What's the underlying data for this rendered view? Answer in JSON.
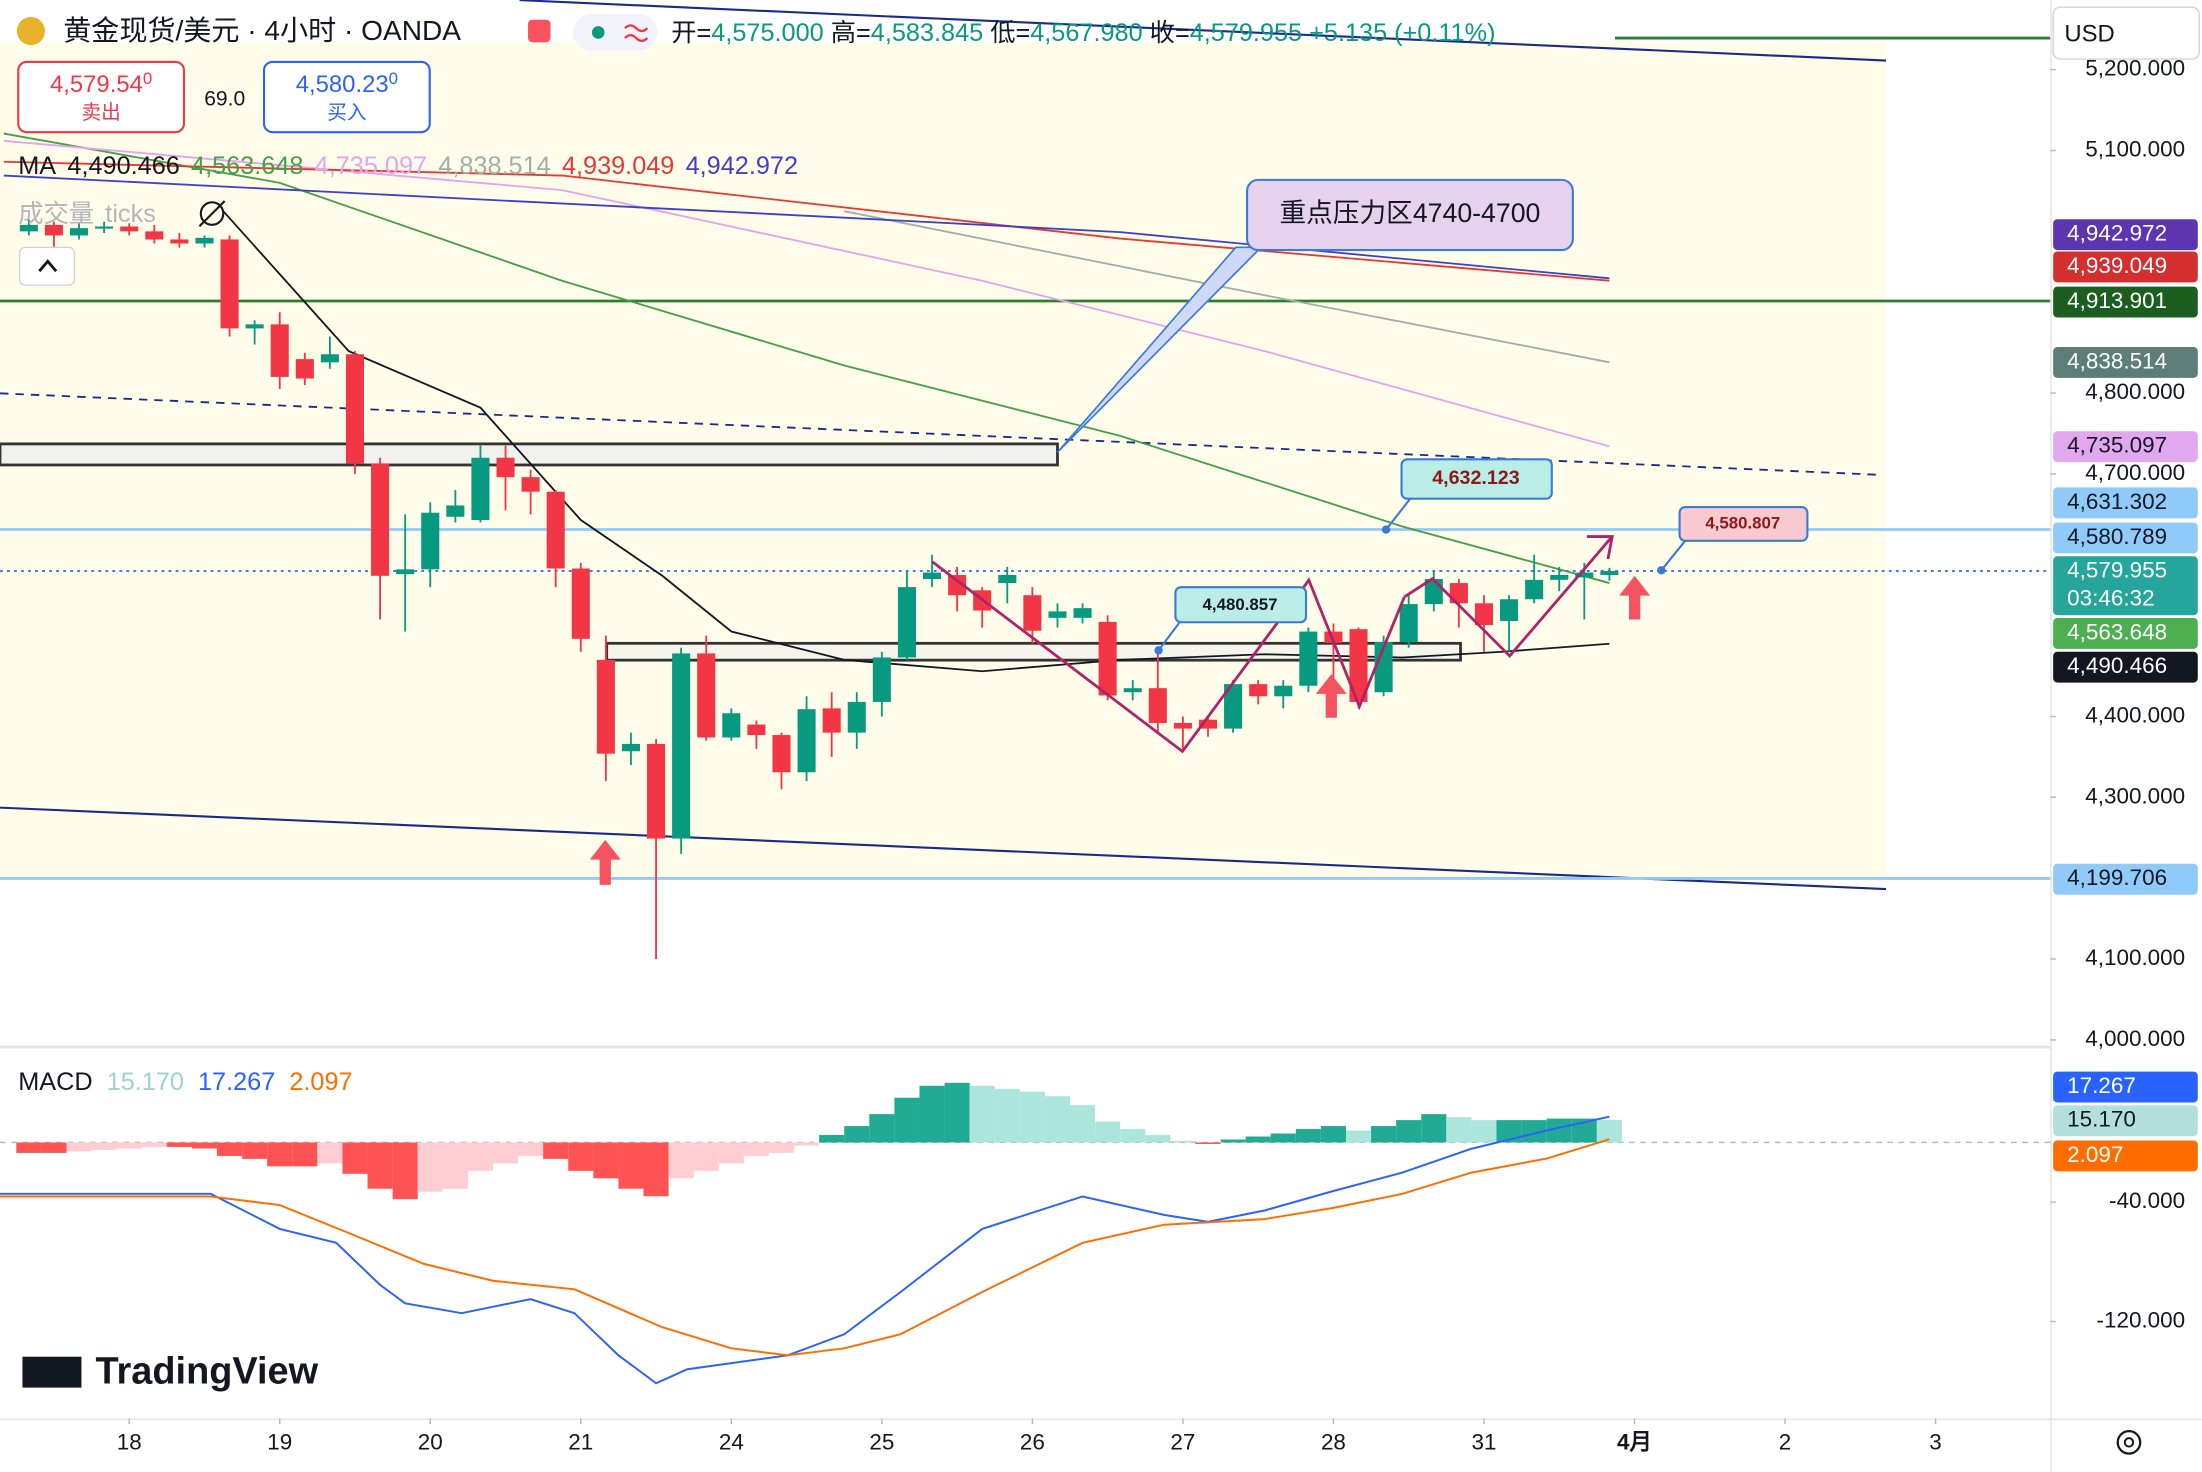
{
  "header": {
    "symbol": "黄金现货/美元 · 4小时 · OANDA",
    "open_key": "开=",
    "open": "4,575.000",
    "high_key": "高=",
    "high": "4,583.845",
    "low_key": "低=",
    "low": "4,567.980",
    "close_key": "收=",
    "close": "4,579.955",
    "change": "+5.135 (+0.11%)",
    "sell_price": "4,579.54",
    "sell_price_last_digit": "0",
    "sell": "卖出",
    "spread": "69.0",
    "buy_price": "4,580.23",
    "buy_price_last_digit": "0",
    "buy": "买入",
    "currency": "USD",
    "ma_title": "MA",
    "volume_title": "成交量",
    "volume_unit": "ticks",
    "countdown": "03:46:32",
    "logo": "TradingView"
  },
  "chart_data": [
    {
      "type": "candlestick",
      "up_color": "#089981",
      "down_color": "#f23645",
      "x": [
        -16,
        -12,
        -8,
        -4,
        0,
        4,
        8,
        12,
        16,
        20,
        24,
        28,
        32,
        36,
        40,
        44,
        48,
        52,
        56,
        60,
        64,
        68,
        72,
        76,
        80,
        84,
        88,
        92,
        96,
        100,
        104,
        108,
        112,
        116,
        120,
        124,
        128,
        132,
        136,
        140,
        144,
        148,
        152,
        156,
        160,
        164,
        168,
        172,
        176,
        180,
        184,
        188,
        192,
        196,
        200,
        204,
        208,
        212,
        216,
        220,
        224,
        228,
        232,
        236
      ],
      "open": [
        5000,
        5008,
        4995,
        5004,
        5006,
        5000,
        4990,
        4985,
        4990,
        4880,
        4885,
        4842,
        4838,
        4848,
        4713,
        4576,
        4582,
        4647,
        4643,
        4720,
        4696,
        4678,
        4583,
        4470,
        4357,
        4366,
        4249,
        4478,
        4374,
        4390,
        4377,
        4331,
        4410,
        4380,
        4418,
        4473,
        4570,
        4575,
        4556,
        4565,
        4550,
        4522,
        4522,
        4517,
        4430,
        4435,
        4392,
        4396,
        4385,
        4440,
        4425,
        4438,
        4505,
        4508,
        4430,
        4492,
        4539,
        4565,
        4540,
        4518,
        4545,
        4569,
        4572,
        4575
      ],
      "high": [
        5015,
        5012,
        5010,
        5012,
        5010,
        5008,
        4998,
        4995,
        4995,
        4890,
        4900,
        4850,
        4870,
        4852,
        4720,
        4650,
        4665,
        4680,
        4735,
        4735,
        4705,
        4680,
        4590,
        4500,
        4380,
        4372,
        4485,
        4500,
        4410,
        4395,
        4380,
        4425,
        4430,
        4430,
        4480,
        4580,
        4600,
        4585,
        4560,
        4585,
        4560,
        4540,
        4540,
        4525,
        4445,
        4480,
        4400,
        4400,
        4445,
        4445,
        4445,
        4510,
        4515,
        4510,
        4500,
        4550,
        4580,
        4570,
        4550,
        4550,
        4600,
        4585,
        4590,
        4583.845
      ],
      "low": [
        4995,
        4973,
        4990,
        4998,
        4995,
        4985,
        4980,
        4980,
        4870,
        4860,
        4805,
        4810,
        4830,
        4700,
        4520,
        4505,
        4560,
        4640,
        4640,
        4655,
        4650,
        4560,
        4480,
        4320,
        4340,
        4100,
        4230,
        4370,
        4370,
        4360,
        4310,
        4320,
        4350,
        4360,
        4400,
        4470,
        4560,
        4530,
        4510,
        4540,
        4490,
        4510,
        4515,
        4420,
        4420,
        4380,
        4360,
        4375,
        4380,
        4415,
        4410,
        4430,
        4430,
        4410,
        4425,
        4485,
        4530,
        4510,
        4480,
        4480,
        4540,
        4555,
        4520,
        4567.98
      ],
      "close": [
        5008,
        4995,
        5004,
        5006,
        5000,
        4990,
        4985,
        4992,
        4880,
        4885,
        4820,
        4818,
        4848,
        4713,
        4574,
        4582,
        4652,
        4661,
        4720,
        4696,
        4678,
        4583,
        4496,
        4354,
        4366,
        4249,
        4478,
        4374,
        4404,
        4377,
        4331,
        4409,
        4380,
        4418,
        4473,
        4560,
        4578,
        4550,
        4531,
        4575,
        4506,
        4530,
        4534,
        4426,
        4435,
        4392,
        4385,
        4385,
        4440,
        4425,
        4438,
        4505,
        4491,
        4418,
        4492,
        4539,
        4570,
        4540,
        4513,
        4545,
        4569,
        4575,
        4578,
        4579.955
      ],
      "xlim": [
        -20.6,
        306.3
      ],
      "ylim": [
        3992,
        5286
      ],
      "xticks": [
        {
          "value": 0,
          "label": "18"
        },
        {
          "value": 24,
          "label": "19"
        },
        {
          "value": 48,
          "label": "20"
        },
        {
          "value": 72,
          "label": "21"
        },
        {
          "value": 96,
          "label": "24"
        },
        {
          "value": 120,
          "label": "25"
        },
        {
          "value": 144,
          "label": "26"
        },
        {
          "value": 168,
          "label": "27"
        },
        {
          "value": 192,
          "label": "28"
        },
        {
          "value": 216,
          "label": "31"
        },
        {
          "value": 240,
          "label": "4月"
        },
        {
          "value": 264,
          "label": "2"
        },
        {
          "value": 288,
          "label": "3"
        }
      ],
      "yticks": [
        {
          "value": 5200,
          "label": "5,200.000"
        },
        {
          "value": 5100,
          "label": "5,100.000"
        },
        {
          "value": 4800,
          "label": "4,800.000"
        },
        {
          "value": 4700,
          "label": "4,700.000"
        },
        {
          "value": 4400,
          "label": "4,400.000"
        },
        {
          "value": 4300,
          "label": "4,300.000"
        },
        {
          "value": 4100,
          "label": "4,100.000"
        },
        {
          "value": 4000,
          "label": "4,000.000"
        }
      ],
      "overlays": [
        {
          "label": "4,490.466",
          "color": "#131722",
          "x": [
            15,
            35,
            56,
            72,
            85,
            96,
            114,
            136,
            158,
            181,
            203,
            219,
            236
          ],
          "values": [
            5025,
            4852,
            4782,
            4643,
            4574,
            4505,
            4470,
            4456,
            4470,
            4477,
            4473,
            4480,
            4490
          ]
        },
        {
          "label": "4,563.648",
          "color": "#43a047",
          "x": [
            -20,
            24,
            69,
            114,
            158,
            203,
            236
          ],
          "values": [
            5121,
            5060,
            4939,
            4834,
            4747,
            4635,
            4565
          ]
        },
        {
          "label": "4,735.097",
          "color": "#e2a4ee",
          "x": [
            -20,
            69,
            136,
            181,
            236
          ],
          "values": [
            5112,
            5051,
            4939,
            4852,
            4734
          ]
        },
        {
          "label": "4,838.514",
          "color": "#9fb0aa",
          "x": [
            114,
            181,
            236
          ],
          "values": [
            5025,
            4921,
            4838
          ]
        },
        {
          "label": "4,939.049",
          "color": "#e53935",
          "x": [
            -20,
            69,
            158,
            236
          ],
          "values": [
            5086,
            5069,
            4991,
            4939
          ]
        },
        {
          "label": "4,942.972",
          "color": "#3f3fc9",
          "x": [
            -20,
            114,
            158,
            236
          ],
          "values": [
            5069,
            5017,
            4999,
            4942
          ]
        }
      ],
      "price_labels": [
        {
          "value": 4942.972,
          "label": "4,942.972",
          "color": "#5e35b1",
          "text_color": "#ffffff"
        },
        {
          "value": 4939.049,
          "label": "4,939.049",
          "color": "#d32f2f",
          "text_color": "#ffffff"
        },
        {
          "value": 4913.901,
          "label": "4,913.901",
          "color": "#1b5e20",
          "text_color": "#ffffff",
          "line": "solid",
          "line_color": "#2e7d32"
        },
        {
          "value": 4838.514,
          "label": "4,838.514",
          "color": "#5d7d78",
          "text_color": "#ffffff"
        },
        {
          "value": 4735.097,
          "label": "4,735.097",
          "color": "#e1a8f0",
          "text_color": "#131722"
        },
        {
          "value": 4631.302,
          "label": "4,631.302",
          "color": "#90caf9",
          "text_color": "#131722",
          "line": "solid",
          "line_color": "#90caf9"
        },
        {
          "value": 4580.789,
          "label": "4,580.789",
          "color": "#90caf9",
          "text_color": "#131722"
        },
        {
          "value": 4579.955,
          "label": "4,579.955",
          "color": "#26a69a",
          "text_color": "#ffffff",
          "line": "dotted",
          "line_color": "#2962ff"
        },
        {
          "value": 4563.648,
          "label": "4,563.648",
          "color": "#4caf50",
          "text_color": "#ffffff"
        },
        {
          "value": 4490.466,
          "label": "4,490.466",
          "color": "#131722",
          "text_color": "#ffffff"
        },
        {
          "value": 4199.706,
          "label": "4,199.706",
          "color": "#90caf9",
          "text_color": "#131722",
          "line": "solid",
          "line_color": "#90caf9"
        }
      ],
      "annotations": [
        "重点压力区4740-4700",
        "4,632.123",
        "4,480.857",
        "4,580.807"
      ]
    },
    {
      "type": "macd",
      "title": "MACD",
      "xlim": [
        -20.6,
        306.3
      ],
      "ylim": [
        -185,
        61.6
      ],
      "yticks": [
        {
          "value": -40,
          "label": "-40.000"
        },
        {
          "value": -120,
          "label": "-120.000"
        }
      ],
      "hist_colors": [
        "#22ab94",
        "#ace5dc",
        "#ff5252",
        "#ffcdd2"
      ],
      "x": [
        -16,
        -12,
        -8,
        -4,
        0,
        4,
        8,
        12,
        16,
        20,
        24,
        28,
        32,
        36,
        40,
        44,
        48,
        52,
        56,
        60,
        64,
        68,
        72,
        76,
        80,
        84,
        88,
        92,
        96,
        100,
        104,
        108,
        112,
        116,
        120,
        124,
        128,
        132,
        136,
        140,
        144,
        148,
        152,
        156,
        160,
        164,
        168,
        172,
        176,
        180,
        184,
        188,
        192,
        196,
        200,
        204,
        208,
        212,
        216,
        220,
        224,
        228,
        232,
        236
      ],
      "histogram": [
        -7,
        -7,
        -6,
        -5,
        -4,
        -3,
        -3,
        -4,
        -9,
        -11,
        -16,
        -16,
        -14,
        -21,
        -31,
        -38,
        -33,
        -31,
        -19,
        -14,
        -9,
        -11,
        -19,
        -24,
        -31,
        -36,
        -24,
        -19,
        -14,
        -9,
        -7,
        -2,
        5,
        11,
        19,
        30,
        38,
        40,
        38,
        36,
        34,
        31,
        25,
        14,
        9,
        5,
        1,
        -1,
        2,
        4,
        6,
        9,
        11,
        8,
        11,
        15,
        19,
        17,
        15,
        15,
        15,
        16,
        16,
        15.17
      ],
      "series": [
        {
          "color": "#2962ff",
          "x": [
            -21,
            13,
            24,
            33,
            40,
            44,
            53,
            64,
            71,
            78,
            84,
            89,
            105,
            114,
            123,
            136,
            152,
            165,
            172,
            181,
            192,
            203,
            214,
            226,
            236
          ],
          "values": [
            -34.4,
            -34.4,
            -57.9,
            -67.3,
            -95.5,
            -107.8,
            -114.4,
            -105,
            -114.4,
            -142.6,
            -161.4,
            -152,
            -142.6,
            -128.5,
            -100.2,
            -57.9,
            -36.2,
            -48.5,
            -53.2,
            -45.6,
            -32.5,
            -20.2,
            -4.2,
            8,
            17.267
          ]
        },
        {
          "color": "#ff6d00",
          "x": [
            -21,
            13,
            24,
            35,
            47,
            58,
            71,
            85,
            96,
            105,
            114,
            123,
            136,
            152,
            165,
            181,
            192,
            203,
            214,
            226,
            236
          ],
          "values": [
            -36.2,
            -36.2,
            -41.9,
            -60.7,
            -81.4,
            -92.7,
            -98.4,
            -123.8,
            -137.9,
            -142.6,
            -137.9,
            -128.5,
            -100.2,
            -67.3,
            -55.1,
            -51.3,
            -43.8,
            -34.4,
            -20.2,
            -10.8,
            2.097
          ]
        }
      ],
      "price_labels": [
        {
          "value": 17.267,
          "label": "17.267",
          "color": "#2962ff",
          "text_color": "#ffffff"
        },
        {
          "value": 15.17,
          "label": "15.170",
          "color": "#b2dfdb",
          "text_color": "#131722"
        },
        {
          "value": 2.097,
          "label": "2.097",
          "color": "#ff6d00",
          "text_color": "#ffffff"
        }
      ]
    }
  ]
}
